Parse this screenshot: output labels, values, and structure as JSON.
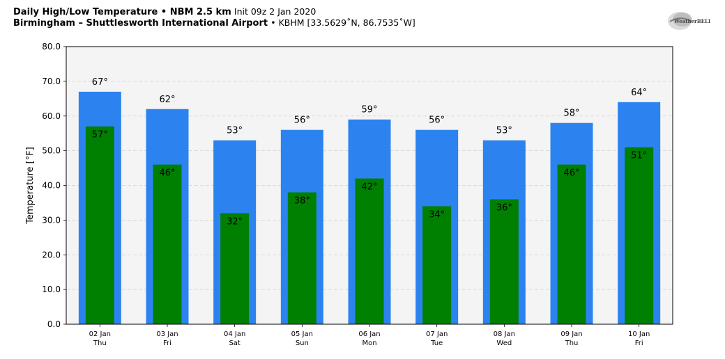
{
  "header": {
    "line1_bold": "Daily High/Low Temperature • NBM 2.5 km",
    "line1_normal": "Init 09z 2 Jan 2020",
    "line2_bold": "Birmingham – Shuttlesworth International Airport",
    "line2_normal": "• KBHM [33.5629˚N, 86.7535˚W]"
  },
  "logo": {
    "text": "WeatherBELL"
  },
  "chart_data": {
    "type": "bar",
    "categories": [
      "02 Jan Thu",
      "03 Jan Fri",
      "04 Jan Sat",
      "05 Jan Sun",
      "06 Jan Mon",
      "07 Jan Tue",
      "08 Jan Wed",
      "09 Jan Thu",
      "10 Jan Fri"
    ],
    "category_dates": [
      "02 Jan",
      "03 Jan",
      "04 Jan",
      "05 Jan",
      "06 Jan",
      "07 Jan",
      "08 Jan",
      "09 Jan",
      "10 Jan"
    ],
    "category_days": [
      "Thu",
      "Fri",
      "Sat",
      "Sun",
      "Mon",
      "Tue",
      "Wed",
      "Thu",
      "Fri"
    ],
    "series": [
      {
        "values": [
          67,
          62,
          53,
          56,
          59,
          56,
          53,
          58,
          64
        ],
        "color": "#2c83ef"
      },
      {
        "values": [
          57,
          46,
          32,
          38,
          42,
          34,
          36,
          46,
          51
        ],
        "color": "#008000"
      }
    ],
    "ylabel": "Temperature [°F]",
    "ylim": [
      0,
      80
    ],
    "yticks": [
      0,
      10,
      20,
      30,
      40,
      50,
      60,
      70,
      80
    ],
    "ytick_labels": [
      "0.0",
      "10.0",
      "20.0",
      "30.0",
      "40.0",
      "50.0",
      "60.0",
      "70.0",
      "80.0"
    ],
    "label_suffix": "°",
    "grid": true,
    "plot_background": "#f4f4f4"
  }
}
